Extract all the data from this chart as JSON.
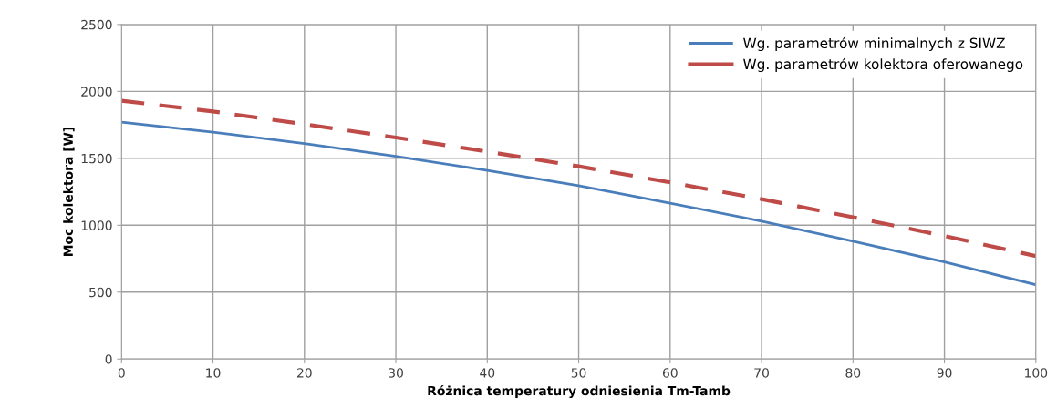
{
  "chart_data": {
    "type": "line",
    "xlabel": "Różnica temperatury odniesienia Tm-Tamb",
    "ylabel": "Moc kolektora [W]",
    "x": [
      0,
      10,
      20,
      30,
      40,
      50,
      60,
      70,
      80,
      90,
      100
    ],
    "series": [
      {
        "name": "Wg. parametrów minimalnych z SIWZ",
        "color": "#4a7ebb",
        "line_style": "solid",
        "values": [
          1770,
          1695,
          1610,
          1515,
          1410,
          1295,
          1165,
          1030,
          880,
          725,
          555
        ]
      },
      {
        "name": "Wg. parametrów kolektora oferowanego",
        "color": "#be4b48",
        "line_style": "dashed",
        "values": [
          1930,
          1850,
          1755,
          1655,
          1550,
          1440,
          1320,
          1195,
          1060,
          920,
          770
        ]
      }
    ],
    "xlim": [
      0,
      100
    ],
    "xticks": [
      0,
      10,
      20,
      30,
      40,
      50,
      60,
      70,
      80,
      90,
      100
    ],
    "ylim": [
      0,
      2500
    ],
    "yticks": [
      0,
      500,
      1000,
      1500,
      2000,
      2500
    ],
    "grid": true,
    "legend": "top right",
    "marker": "none"
  }
}
